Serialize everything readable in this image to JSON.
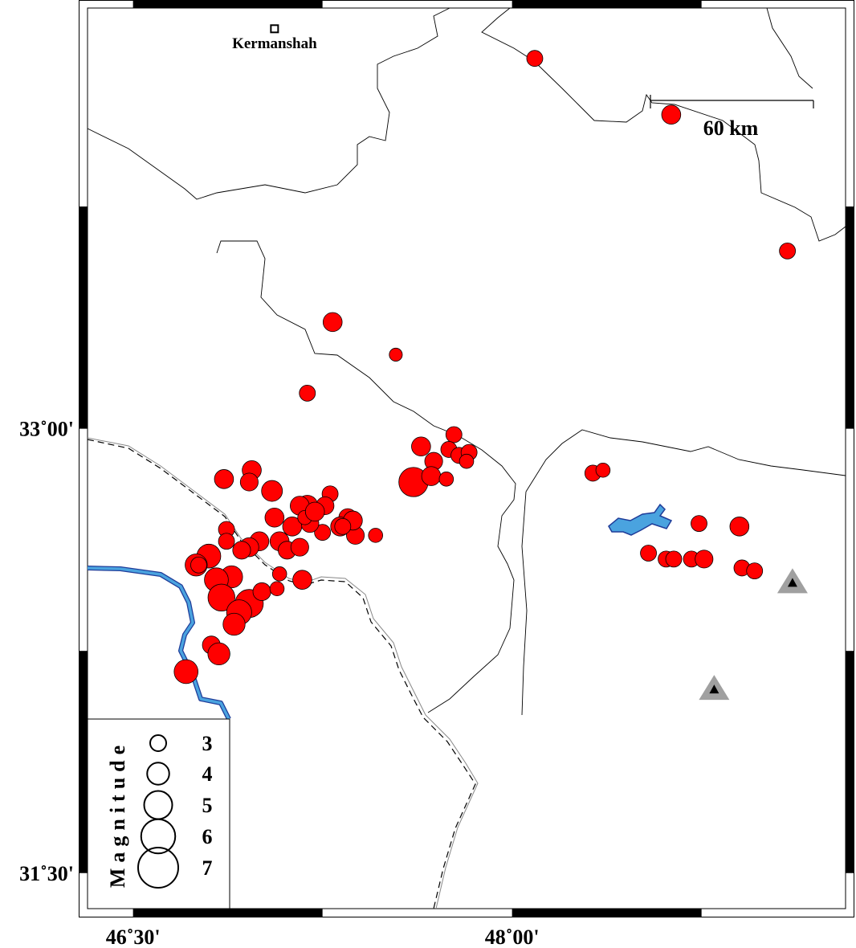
{
  "map": {
    "extent": {
      "lon": [
        46.32,
        49.32
      ],
      "lat": [
        31.38,
        34.42
      ]
    },
    "lon_ticks": [
      {
        "value": 46.5,
        "label": "46˚30'"
      },
      {
        "value": 48.0,
        "label": "48˚00'"
      }
    ],
    "lat_ticks": [
      {
        "value": 33.0,
        "label": "33˚00'"
      },
      {
        "value": 31.5,
        "label": "31˚30'"
      }
    ],
    "colors": {
      "event": "#ff0000",
      "river": "#4aa3df",
      "river_edge": "#1f3c99",
      "station": "#a0a0a0",
      "station_inner": "#000000",
      "border": "#000000"
    },
    "city": {
      "name": "Kermanshah",
      "lon": 47.06,
      "lat": 34.35,
      "icon": "square-city-marker"
    },
    "scale_bar": {
      "label": "60 km",
      "length_km": 60
    },
    "legend": {
      "title": "Magnitude",
      "entries": [
        {
          "mag": 3,
          "label": "3"
        },
        {
          "mag": 4,
          "label": "4"
        },
        {
          "mag": 5,
          "label": "5"
        },
        {
          "mag": 6,
          "label": "6"
        },
        {
          "mag": 7,
          "label": "7"
        }
      ]
    },
    "stations": [
      {
        "lon": 49.11,
        "lat": 32.48
      },
      {
        "lon": 48.8,
        "lat": 32.12
      }
    ],
    "events": [
      [
        48.09,
        34.25,
        3.0
      ],
      [
        48.63,
        34.06,
        3.5
      ],
      [
        49.09,
        33.6,
        3.0
      ],
      [
        47.29,
        33.36,
        3.5
      ],
      [
        47.54,
        33.25,
        2.5
      ],
      [
        47.19,
        33.12,
        3.0
      ],
      [
        47.77,
        32.98,
        3.0
      ],
      [
        47.64,
        32.94,
        3.5
      ],
      [
        47.69,
        32.89,
        3.3
      ],
      [
        47.75,
        32.93,
        3.0
      ],
      [
        47.79,
        32.91,
        3.0
      ],
      [
        47.83,
        32.92,
        3.0
      ],
      [
        47.82,
        32.89,
        2.7
      ],
      [
        47.61,
        32.82,
        5.2
      ],
      [
        47.68,
        32.84,
        3.5
      ],
      [
        47.74,
        32.83,
        2.7
      ],
      [
        48.32,
        32.85,
        3.0
      ],
      [
        48.36,
        32.86,
        2.7
      ],
      [
        48.74,
        32.68,
        3.0
      ],
      [
        48.9,
        32.67,
        3.5
      ],
      [
        48.54,
        32.58,
        3.0
      ],
      [
        48.61,
        32.56,
        3.0
      ],
      [
        48.64,
        32.56,
        3.0
      ],
      [
        48.71,
        32.56,
        3.0
      ],
      [
        48.76,
        32.56,
        3.3
      ],
      [
        48.91,
        32.53,
        3.0
      ],
      [
        48.96,
        32.52,
        3.0
      ],
      [
        46.86,
        32.83,
        3.5
      ],
      [
        46.97,
        32.86,
        3.5
      ],
      [
        46.96,
        32.82,
        3.3
      ],
      [
        47.05,
        32.79,
        3.8
      ],
      [
        47.19,
        32.74,
        3.8
      ],
      [
        47.28,
        32.78,
        3.0
      ],
      [
        47.16,
        32.74,
        3.5
      ],
      [
        47.06,
        32.7,
        3.5
      ],
      [
        47.26,
        32.74,
        3.3
      ],
      [
        47.35,
        32.7,
        3.3
      ],
      [
        47.46,
        32.64,
        2.7
      ],
      [
        47.38,
        32.64,
        3.3
      ],
      [
        47.32,
        32.67,
        3.5
      ],
      [
        47.25,
        32.65,
        3.0
      ],
      [
        47.2,
        32.68,
        3.3
      ],
      [
        47.13,
        32.67,
        3.5
      ],
      [
        47.08,
        32.62,
        3.5
      ],
      [
        47.0,
        32.62,
        3.5
      ],
      [
        46.96,
        32.6,
        3.5
      ],
      [
        46.93,
        32.59,
        3.3
      ],
      [
        46.87,
        32.66,
        3.0
      ],
      [
        46.87,
        32.62,
        3.0
      ],
      [
        46.8,
        32.57,
        4.3
      ],
      [
        46.75,
        32.54,
        4.0
      ],
      [
        46.76,
        32.54,
        3.0
      ],
      [
        46.89,
        32.5,
        4.0
      ],
      [
        46.83,
        32.49,
        4.3
      ],
      [
        46.85,
        32.43,
        4.8
      ],
      [
        46.96,
        32.41,
        5.0
      ],
      [
        46.92,
        32.38,
        4.5
      ],
      [
        46.9,
        32.34,
        4.0
      ],
      [
        47.01,
        32.45,
        3.3
      ],
      [
        47.07,
        32.46,
        2.7
      ],
      [
        47.08,
        32.51,
        2.7
      ],
      [
        47.17,
        32.49,
        3.5
      ],
      [
        47.11,
        32.59,
        3.3
      ],
      [
        47.16,
        32.6,
        3.3
      ],
      [
        47.37,
        32.69,
        3.5
      ],
      [
        47.33,
        32.67,
        3.0
      ],
      [
        47.18,
        32.7,
        2.7
      ],
      [
        47.22,
        32.72,
        3.5
      ],
      [
        46.81,
        32.27,
        3.3
      ],
      [
        46.84,
        32.24,
        4.0
      ],
      [
        46.71,
        32.18,
        4.3
      ]
    ]
  }
}
